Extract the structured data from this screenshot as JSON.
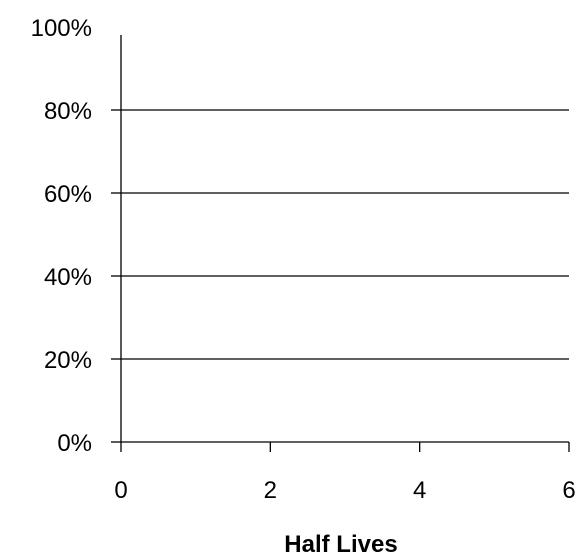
{
  "chart_data": {
    "type": "line",
    "title": "",
    "xlabel": "Half Lives",
    "ylabel": "",
    "xlim": [
      0,
      6
    ],
    "ylim": [
      0,
      100
    ],
    "x_ticks": [
      0,
      2,
      4,
      6
    ],
    "x_tick_labels": [
      "0",
      "2",
      "4",
      "6"
    ],
    "y_ticks": [
      0,
      20,
      40,
      60,
      80,
      100
    ],
    "y_tick_labels": [
      "0%",
      "20%",
      "40%",
      "60%",
      "80%",
      "100%"
    ],
    "grid": "horizontal",
    "legend": "none",
    "series": []
  },
  "colors": {
    "axis": "#000000",
    "gridline": "#000000",
    "background": "#ffffff"
  }
}
